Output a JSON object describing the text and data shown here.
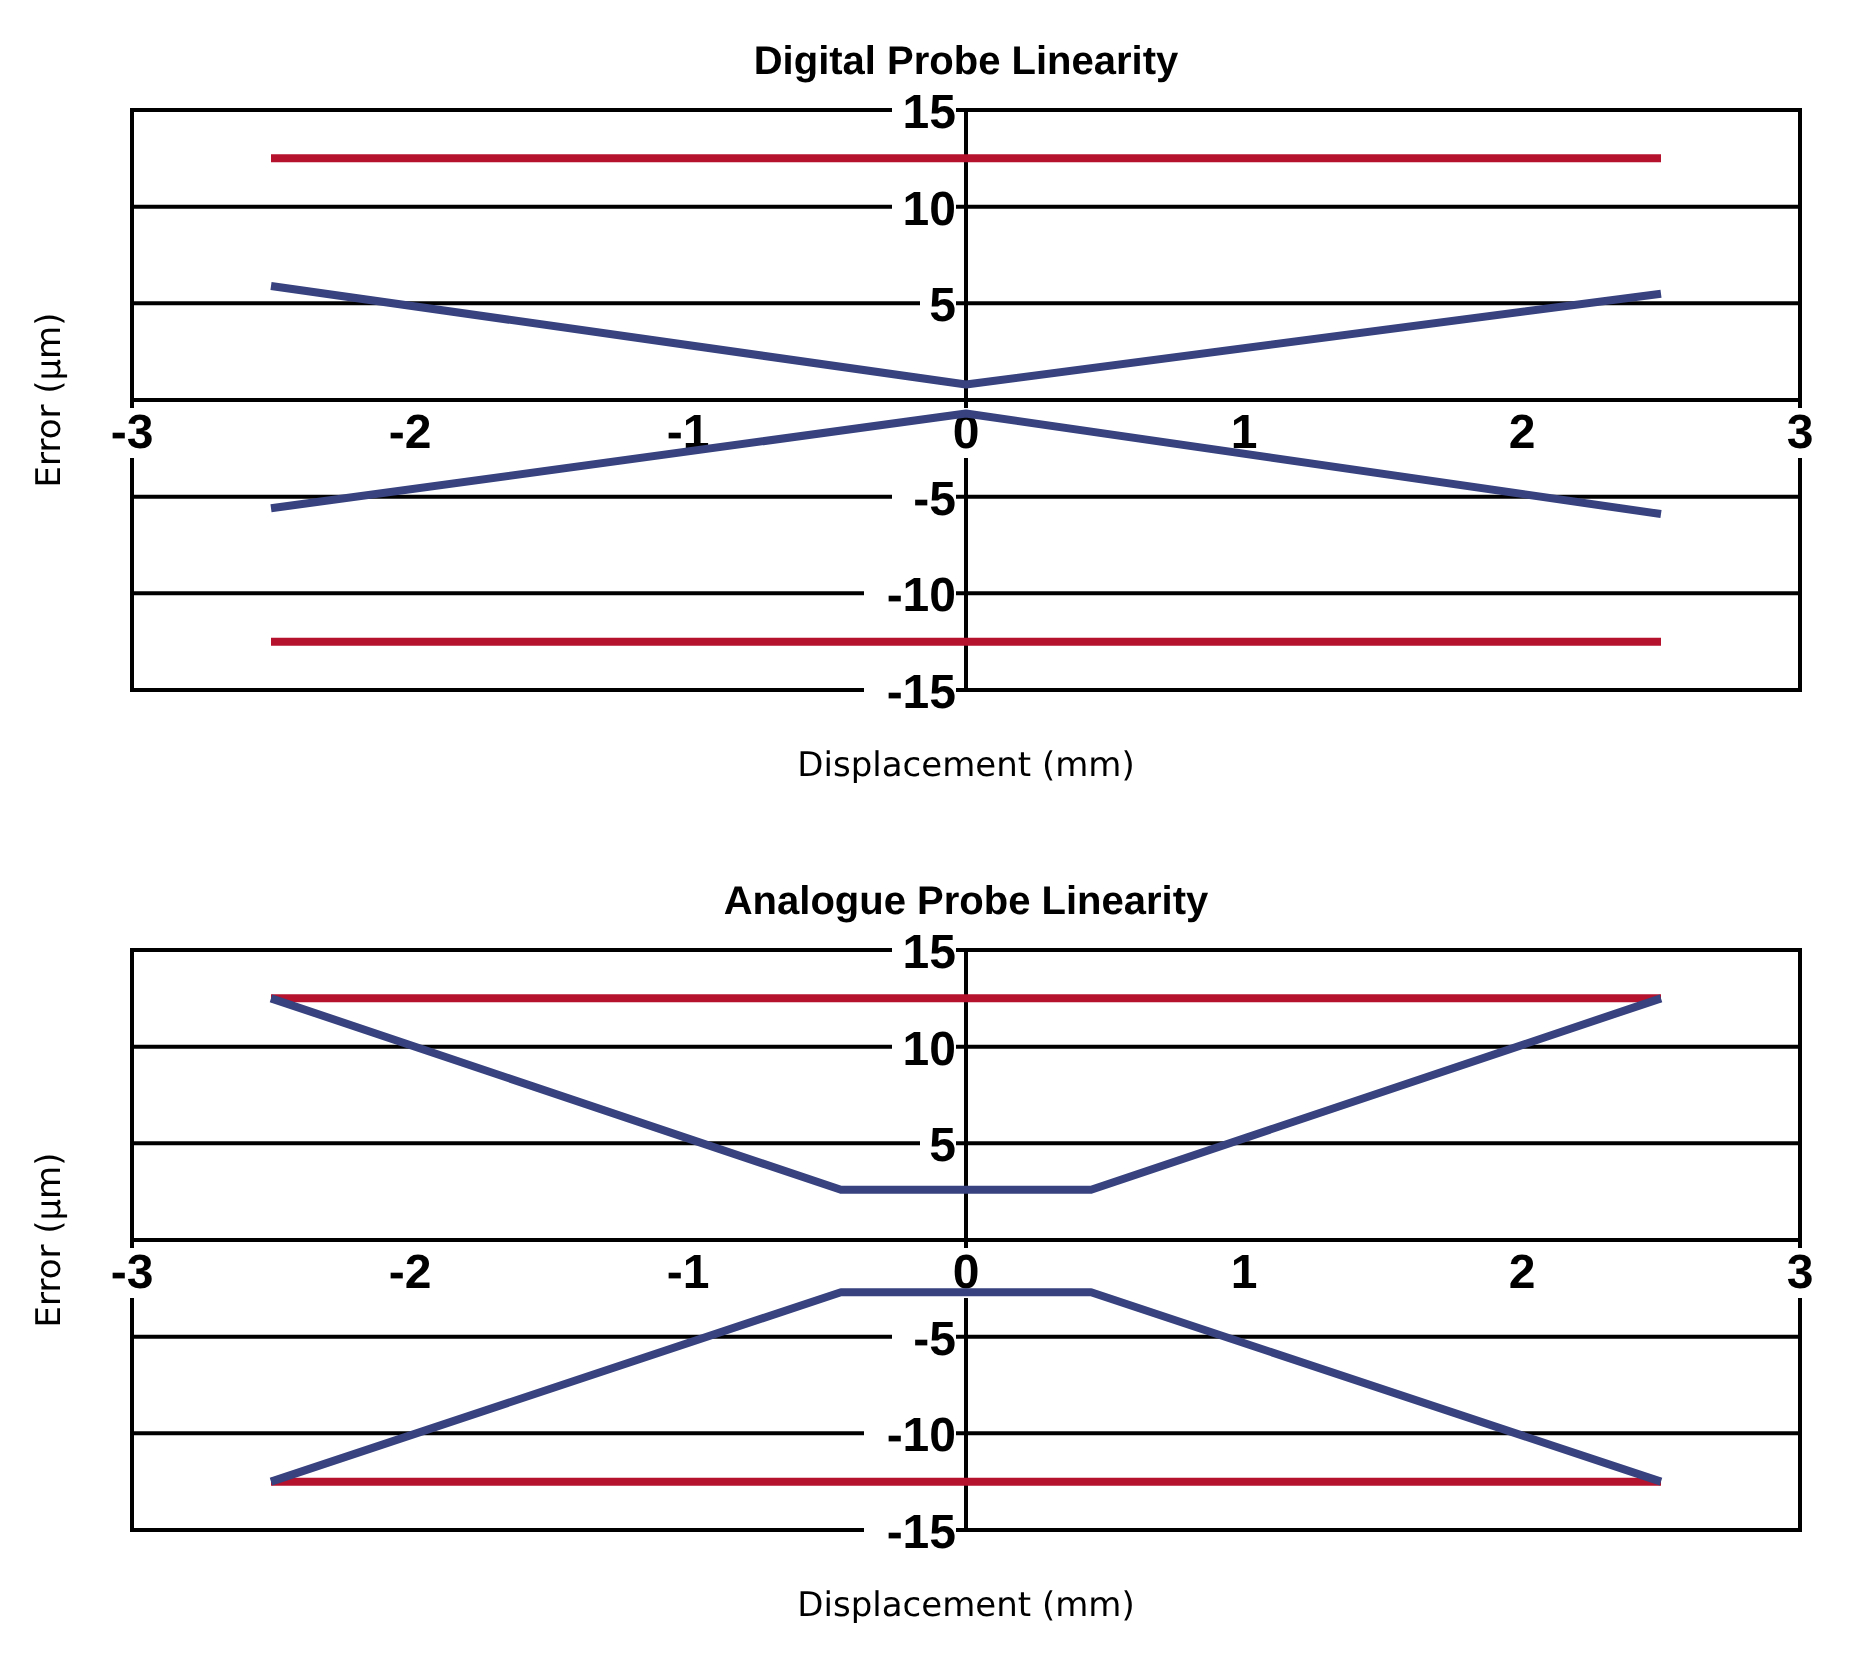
{
  "chart_data": [
    {
      "type": "line",
      "title": "Digital Probe Linearity",
      "xlabel": "Displacement (mm)",
      "ylabel": "Error (µm)",
      "xlim": [
        -3,
        3
      ],
      "ylim": [
        -15,
        15
      ],
      "xticks": [
        -3,
        -2,
        -1,
        0,
        1,
        2,
        3
      ],
      "yticks": [
        -15,
        -10,
        -5,
        {
          "value": 0,
          "label": null
        },
        5,
        10,
        15
      ],
      "grid": "y",
      "legend": false,
      "marker": "none",
      "line_style": "solid",
      "series": [
        {
          "color": "#b5122e",
          "x": [
            -2.5,
            2.5
          ],
          "values": [
            12.5,
            12.5
          ]
        },
        {
          "color": "#b5122e",
          "x": [
            -2.5,
            2.5
          ],
          "values": [
            -12.5,
            -12.5
          ]
        },
        {
          "color": "#37427f",
          "x": [
            -2.5,
            0,
            2.5
          ],
          "values": [
            5.9,
            0.8,
            5.5
          ]
        },
        {
          "color": "#37427f",
          "x": [
            -2.5,
            0,
            2.5
          ],
          "values": [
            -5.6,
            -0.7,
            -5.9
          ]
        }
      ]
    },
    {
      "type": "line",
      "title": "Analogue Probe Linearity",
      "xlabel": "Displacement (mm)",
      "ylabel": "Error (µm)",
      "xlim": [
        -3,
        3
      ],
      "ylim": [
        -15,
        15
      ],
      "xticks": [
        -3,
        -2,
        -1,
        0,
        1,
        2,
        3
      ],
      "yticks": [
        -15,
        -10,
        -5,
        {
          "value": 0,
          "label": null
        },
        5,
        10,
        15
      ],
      "grid": "y",
      "legend": false,
      "marker": "none",
      "line_style": "solid",
      "series": [
        {
          "color": "#b5122e",
          "x": [
            -2.5,
            2.5
          ],
          "values": [
            12.5,
            12.5
          ]
        },
        {
          "color": "#b5122e",
          "x": [
            -2.5,
            2.5
          ],
          "values": [
            -12.5,
            -12.5
          ]
        },
        {
          "color": "#37427f",
          "x": [
            -2.5,
            -0.45,
            0.45,
            2.5
          ],
          "values": [
            12.5,
            2.6,
            2.6,
            12.5
          ]
        },
        {
          "color": "#37427f",
          "x": [
            -2.5,
            -0.45,
            0.45,
            2.5
          ],
          "values": [
            -12.5,
            -2.7,
            -2.7,
            -12.5
          ]
        }
      ]
    }
  ]
}
